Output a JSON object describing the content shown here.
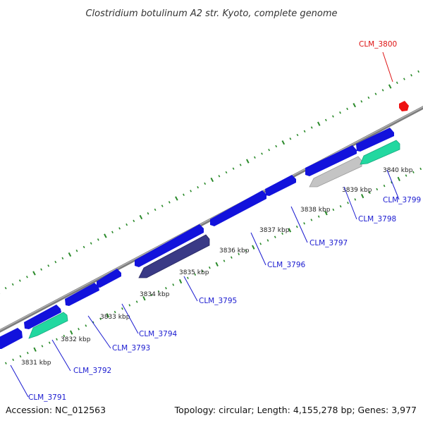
{
  "title": "Clostridium botulinum A2 str. Kyoto, complete genome",
  "accession": "Accession: NC_012563",
  "summary": "Topology: circular; Length: 4,155,278 bp; Genes: 3,977",
  "colors": {
    "forward_cds": "#1010e0",
    "reverse_cds_default": "#2a2a78",
    "rna": "#22d8a0",
    "pseudo": "#bbbbbb",
    "highlight": "#ee1111",
    "backbone": "#888888",
    "tick": "#2a8a2a",
    "gene_label": "#1a1ad0",
    "highlight_label": "#dd1111"
  },
  "kbp_labels": [
    {
      "text": "3831 kbp"
    },
    {
      "text": "3832 kbp"
    },
    {
      "text": "3833 kbp"
    },
    {
      "text": "3834 kbp"
    },
    {
      "text": "3835 kbp"
    },
    {
      "text": "3836 kbp"
    },
    {
      "text": "3837 kbp"
    },
    {
      "text": "3838 kbp"
    },
    {
      "text": "3839 kbp"
    },
    {
      "text": "3840 kbp"
    }
  ],
  "gene_labels": [
    {
      "text": "CLM_3791",
      "highlight": false
    },
    {
      "text": "CLM_3792",
      "highlight": false
    },
    {
      "text": "CLM_3793",
      "highlight": false
    },
    {
      "text": "CLM_3794",
      "highlight": false
    },
    {
      "text": "CLM_3795",
      "highlight": false
    },
    {
      "text": "CLM_3796",
      "highlight": false
    },
    {
      "text": "CLM_3797",
      "highlight": false
    },
    {
      "text": "CLM_3798",
      "highlight": false
    },
    {
      "text": "CLM_3799",
      "highlight": false
    },
    {
      "text": "CLM_3800",
      "highlight": true
    }
  ]
}
